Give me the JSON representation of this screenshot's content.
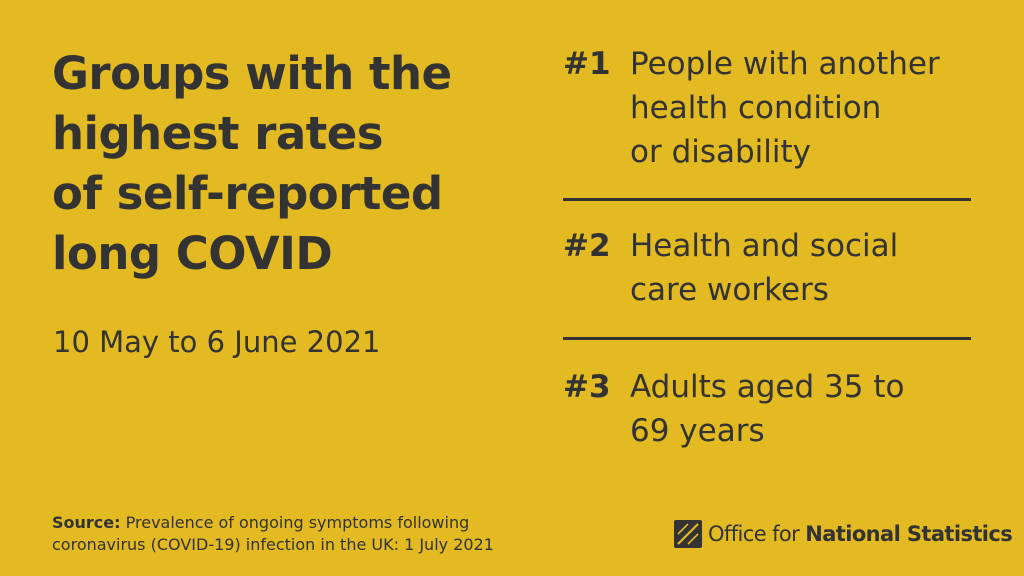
{
  "headline": {
    "lines": [
      "Groups with the",
      "highest rates",
      "of self-reported",
      "long COVID"
    ]
  },
  "date_range": "10 May to 6 June 2021",
  "ranks": [
    {
      "number": "#1",
      "lines": [
        "People with another",
        "health condition",
        "or disability"
      ]
    },
    {
      "number": "#2",
      "lines": [
        "Health and social",
        "care workers"
      ]
    },
    {
      "number": "#3",
      "lines": [
        "Adults aged 35 to",
        "69 years"
      ]
    }
  ],
  "source": {
    "label": "Source:",
    "line1": "Prevalence of ongoing symptoms following",
    "line2": "coronavirus (COVID-19) infection in the UK: 1 July 2021"
  },
  "logo": {
    "regular": "Office for",
    "bold": "National Statistics",
    "icon": "ons-logo-icon"
  },
  "colors": {
    "background": "#E3BA21",
    "text": "#333333"
  }
}
